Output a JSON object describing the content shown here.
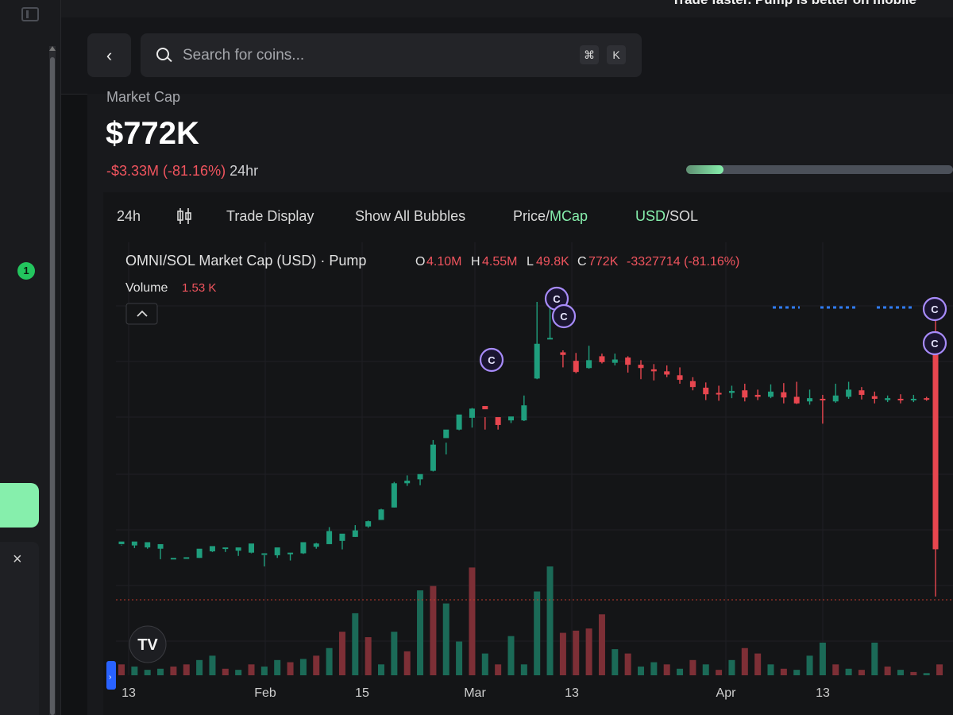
{
  "window": {
    "banner": "Trade faster. Pump is better on mobile"
  },
  "sidebar": {
    "notification_count": "1",
    "close_label": "×"
  },
  "header": {
    "back_label": "‹",
    "search_placeholder": "Search for coins...",
    "shortcut_keys": [
      "⌘",
      "K"
    ]
  },
  "summary": {
    "label": "Market Cap",
    "value": "$772K",
    "change_value": "-$3.33M (-81.16%)",
    "change_period": "24hr",
    "bonding_progress": 0.14
  },
  "toolbar": {
    "interval": "24h",
    "candle_icon": "candlestick-icon",
    "trade_display": "Trade Display",
    "bubbles": "Show All Bubbles",
    "price": "Price",
    "mcap": "MCap",
    "usd": "USD",
    "sol": "SOL",
    "sep": "/"
  },
  "chart_data": {
    "type": "candlestick",
    "title": "OMNI/SOL Market Cap (USD) · Pump",
    "ohlc": {
      "o_label": "O",
      "o": "4.10M",
      "h_label": "H",
      "h": "4.55M",
      "l_label": "L",
      "l": "49.8K",
      "c_label": "C",
      "c": "772K",
      "change": "-3327714 (-81.16%)"
    },
    "volume_label": "Volume",
    "volume_value": "1.53 K",
    "x_tick_labels": [
      "13",
      "Feb",
      "15",
      "Mar",
      "13",
      "Apr",
      "13"
    ],
    "bubble_marker": "C",
    "colors": {
      "up": "#1f9e7d",
      "down": "#e8464f",
      "volume_up": "#1b6a57",
      "volume_down": "#7d2f36",
      "bubble": "#a78bfa",
      "accent": "#86efac"
    },
    "candles": [
      [
        0.85,
        0.89,
        0.84,
        0.83
      ],
      [
        0.83,
        0.89,
        0.84,
        0.79
      ],
      [
        0.8,
        0.88,
        0.81,
        0.78
      ],
      [
        0.78,
        0.85,
        0.79,
        0.62
      ],
      [
        0.62,
        0.64,
        0.63,
        0.62
      ],
      [
        0.63,
        0.65,
        0.64,
        0.63
      ],
      [
        0.64,
        0.78,
        0.74,
        0.64
      ],
      [
        0.74,
        0.82,
        0.79,
        0.73
      ],
      [
        0.78,
        0.8,
        0.79,
        0.73
      ],
      [
        0.75,
        0.8,
        0.77,
        0.67
      ],
      [
        0.72,
        0.86,
        0.72,
        0.71
      ],
      [
        0.71,
        0.71,
        0.68,
        0.51
      ],
      [
        0.68,
        0.8,
        0.7,
        0.64
      ],
      [
        0.7,
        0.72,
        0.71,
        0.6
      ],
      [
        0.71,
        0.88,
        0.79,
        0.7
      ],
      [
        0.81,
        0.86,
        0.87,
        0.78
      ],
      [
        0.85,
        1.05,
        1.11,
        0.95
      ],
      [
        0.9,
        1.01,
        0.97,
        0.77
      ],
      [
        0.96,
        1.06,
        1.14,
        0.96
      ],
      [
        1.12,
        1.2,
        1.21,
        1.1
      ],
      [
        1.22,
        1.38,
        1.39,
        1.22
      ],
      [
        1.41,
        1.78,
        1.8,
        1.41
      ],
      [
        1.78,
        1.82,
        1.9,
        1.74
      ],
      [
        1.84,
        1.92,
        1.86,
        1.75
      ],
      [
        1.97,
        2.37,
        2.44,
        1.96
      ],
      [
        2.47,
        2.6,
        2.4,
        2.22
      ],
      [
        2.6,
        2.83,
        2.8,
        2.59
      ],
      [
        2.78,
        2.92,
        2.93,
        2.63
      ],
      [
        2.96,
        2.91,
        2.79,
        2.6
      ],
      [
        2.79,
        2.67,
        2.74,
        2.6
      ],
      [
        2.74,
        2.8,
        2.76,
        2.7
      ],
      [
        2.74,
        2.97,
        3.12,
        2.73
      ],
      [
        3.38,
        3.91,
        4.55,
        3.37
      ],
      [
        3.99,
        4.0,
        4.55,
        3.99
      ],
      [
        3.78,
        3.74,
        3.81,
        3.55
      ],
      [
        3.65,
        3.48,
        3.77,
        3.46
      ],
      [
        3.54,
        3.66,
        3.88,
        3.53
      ],
      [
        3.72,
        3.63,
        3.76,
        3.61
      ],
      [
        3.62,
        3.67,
        3.76,
        3.58
      ],
      [
        3.7,
        3.59,
        3.72,
        3.47
      ],
      [
        3.59,
        3.54,
        3.66,
        3.37
      ],
      [
        3.52,
        3.49,
        3.6,
        3.35
      ],
      [
        3.49,
        3.44,
        3.58,
        3.4
      ],
      [
        3.43,
        3.36,
        3.55,
        3.3
      ],
      [
        3.34,
        3.25,
        3.4,
        3.2
      ],
      [
        3.24,
        3.14,
        3.32,
        3.05
      ],
      [
        3.16,
        3.15,
        3.27,
        3.04
      ],
      [
        3.16,
        3.19,
        3.27,
        3.08
      ],
      [
        3.2,
        3.09,
        3.3,
        3.03
      ],
      [
        3.13,
        3.1,
        3.21,
        3.05
      ],
      [
        3.1,
        3.18,
        3.29,
        3.08
      ],
      [
        3.17,
        3.09,
        3.31,
        3.0
      ],
      [
        3.1,
        3.0,
        3.33,
        2.99
      ],
      [
        3.03,
        3.08,
        3.21,
        2.98
      ],
      [
        3.07,
        3.05,
        3.13,
        2.69
      ],
      [
        3.03,
        3.12,
        3.3,
        3.01
      ],
      [
        3.1,
        3.21,
        3.33,
        3.07
      ],
      [
        3.2,
        3.13,
        3.25,
        3.06
      ],
      [
        3.11,
        3.07,
        3.18,
        3.0
      ],
      [
        3.05,
        3.08,
        3.12,
        3.02
      ],
      [
        3.07,
        3.06,
        3.14,
        3.0
      ],
      [
        3.06,
        3.07,
        3.13,
        3.02
      ],
      [
        3.08,
        3.07,
        3.1,
        3.04
      ],
      [
        4.1,
        0.772,
        4.55,
        0.0498
      ]
    ],
    "volumes": [
      [
        0.1,
        "d"
      ],
      [
        0.08,
        "u"
      ],
      [
        0.05,
        "u"
      ],
      [
        0.06,
        "u"
      ],
      [
        0.08,
        "d"
      ],
      [
        0.1,
        "d"
      ],
      [
        0.14,
        "u"
      ],
      [
        0.18,
        "u"
      ],
      [
        0.06,
        "d"
      ],
      [
        0.05,
        "u"
      ],
      [
        0.1,
        "d"
      ],
      [
        0.08,
        "u"
      ],
      [
        0.14,
        "u"
      ],
      [
        0.12,
        "d"
      ],
      [
        0.15,
        "u"
      ],
      [
        0.18,
        "d"
      ],
      [
        0.25,
        "u"
      ],
      [
        0.4,
        "d"
      ],
      [
        0.57,
        "u"
      ],
      [
        0.35,
        "d"
      ],
      [
        0.1,
        "u"
      ],
      [
        0.4,
        "u"
      ],
      [
        0.22,
        "d"
      ],
      [
        0.78,
        "u"
      ],
      [
        0.82,
        "d"
      ],
      [
        0.66,
        "u"
      ],
      [
        0.31,
        "u"
      ],
      [
        0.99,
        "d"
      ],
      [
        0.2,
        "u"
      ],
      [
        0.1,
        "d"
      ],
      [
        0.36,
        "u"
      ],
      [
        0.1,
        "u"
      ],
      [
        0.77,
        "u"
      ],
      [
        1.0,
        "u"
      ],
      [
        0.39,
        "d"
      ],
      [
        0.41,
        "d"
      ],
      [
        0.43,
        "d"
      ],
      [
        0.56,
        "d"
      ],
      [
        0.24,
        "u"
      ],
      [
        0.2,
        "d"
      ],
      [
        0.08,
        "u"
      ],
      [
        0.12,
        "u"
      ],
      [
        0.1,
        "d"
      ],
      [
        0.06,
        "u"
      ],
      [
        0.14,
        "d"
      ],
      [
        0.1,
        "u"
      ],
      [
        0.05,
        "d"
      ],
      [
        0.14,
        "u"
      ],
      [
        0.25,
        "d"
      ],
      [
        0.2,
        "d"
      ],
      [
        0.1,
        "u"
      ],
      [
        0.06,
        "d"
      ],
      [
        0.05,
        "u"
      ],
      [
        0.18,
        "u"
      ],
      [
        0.3,
        "u"
      ],
      [
        0.1,
        "d"
      ],
      [
        0.06,
        "u"
      ],
      [
        0.05,
        "d"
      ],
      [
        0.3,
        "u"
      ],
      [
        0.08,
        "d"
      ],
      [
        0.05,
        "u"
      ],
      [
        0.03,
        "d"
      ],
      [
        0.02,
        "u"
      ],
      [
        0.1,
        "d"
      ]
    ]
  }
}
